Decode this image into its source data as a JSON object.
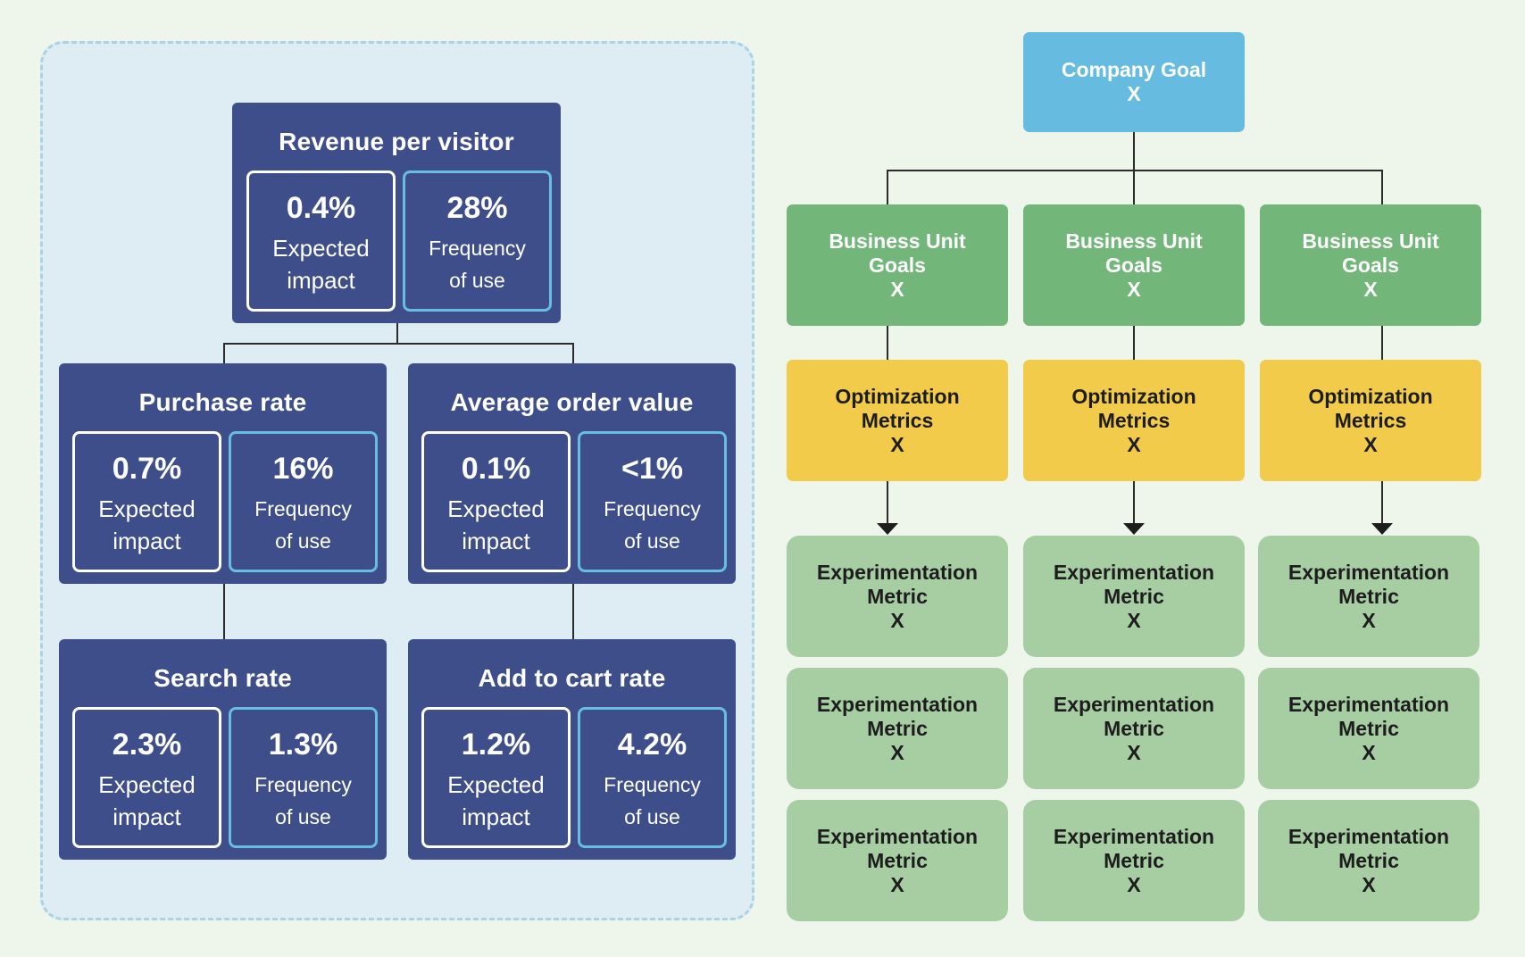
{
  "metric_tree": {
    "root": {
      "title": "Revenue per visitor",
      "impact": {
        "value": "0.4%",
        "label": "Expected\nimpact"
      },
      "frequency": {
        "value": "28%",
        "label": "Frequency\nof use"
      }
    },
    "purchase_rate": {
      "title": "Purchase rate",
      "impact": {
        "value": "0.7%",
        "label": "Expected\nimpact"
      },
      "frequency": {
        "value": "16%",
        "label": "Frequency\nof use"
      }
    },
    "average_order_value": {
      "title": "Average order value",
      "impact": {
        "value": "0.1%",
        "label": "Expected\nimpact"
      },
      "frequency": {
        "value": "<1%",
        "label": "Frequency\nof use"
      }
    },
    "search_rate": {
      "title": "Search rate",
      "impact": {
        "value": "2.3%",
        "label": "Expected\nimpact"
      },
      "frequency": {
        "value": "1.3%",
        "label": "Frequency\nof use"
      }
    },
    "add_to_cart_rate": {
      "title": "Add to cart rate",
      "impact": {
        "value": "1.2%",
        "label": "Expected\nimpact"
      },
      "frequency": {
        "value": "4.2%",
        "label": "Frequency\nof use"
      }
    }
  },
  "goal_hierarchy": {
    "company_goal": {
      "line1": "Company Goal",
      "value": "X"
    },
    "columns": [
      {
        "business_unit": {
          "line1": "Business Unit",
          "line2": "Goals",
          "value": "X"
        },
        "optimization": {
          "line1": "Optimization",
          "line2": "Metrics",
          "value": "X"
        },
        "experiments": [
          {
            "line1": "Experimentation",
            "line2": "Metric",
            "value": "X"
          },
          {
            "line1": "Experimentation",
            "line2": "Metric",
            "value": "X"
          },
          {
            "line1": "Experimentation",
            "line2": "Metric",
            "value": "X"
          }
        ]
      },
      {
        "business_unit": {
          "line1": "Business Unit",
          "line2": "Goals",
          "value": "X"
        },
        "optimization": {
          "line1": "Optimization",
          "line2": "Metrics",
          "value": "X"
        },
        "experiments": [
          {
            "line1": "Experimentation",
            "line2": "Metric",
            "value": "X"
          },
          {
            "line1": "Experimentation",
            "line2": "Metric",
            "value": "X"
          },
          {
            "line1": "Experimentation",
            "line2": "Metric",
            "value": "X"
          }
        ]
      },
      {
        "business_unit": {
          "line1": "Business Unit",
          "line2": "Goals",
          "value": "X"
        },
        "optimization": {
          "line1": "Optimization",
          "line2": "Metrics",
          "value": "X"
        },
        "experiments": [
          {
            "line1": "Experimentation",
            "line2": "Metric",
            "value": "X"
          },
          {
            "line1": "Experimentation",
            "line2": "Metric",
            "value": "X"
          },
          {
            "line1": "Experimentation",
            "line2": "Metric",
            "value": "X"
          }
        ]
      }
    ]
  },
  "colors": {
    "metric_node": "#3d4e8b",
    "frequency_border": "#67bde4",
    "company_goal": "#66bbe0",
    "business_unit": "#72b67a",
    "optimization": "#f2cb4b",
    "experimentation": "#a7cda3"
  }
}
